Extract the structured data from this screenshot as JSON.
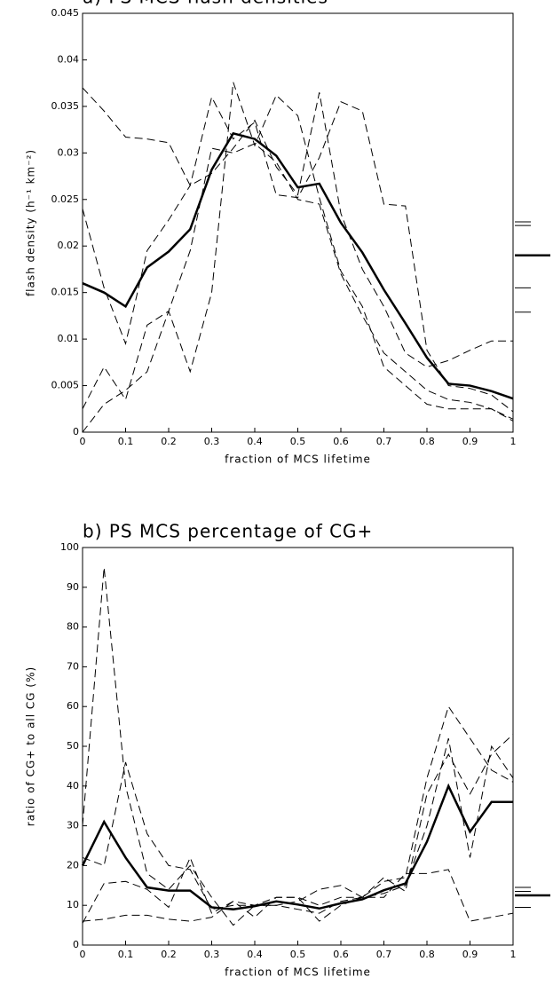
{
  "chart_data": [
    {
      "type": "line",
      "title": "a)  PS MCS flash densities",
      "x_label": "fraction of MCS lifetime",
      "y_label": "flash density (h⁻¹ km⁻²)",
      "x": [
        0,
        0.05,
        0.1,
        0.15,
        0.2,
        0.25,
        0.3,
        0.35,
        0.4,
        0.45,
        0.5,
        0.55,
        0.6,
        0.65,
        0.7,
        0.75,
        0.8,
        0.85,
        0.9,
        0.95,
        1
      ],
      "xlim": [
        0,
        1
      ],
      "xticks": [
        0,
        0.1,
        0.2,
        0.3,
        0.4,
        0.5,
        0.6,
        0.7,
        0.8,
        0.9,
        1
      ],
      "ylim": [
        0,
        0.045
      ],
      "yticks": [
        0,
        0.005,
        0.01,
        0.015,
        0.02,
        0.025,
        0.03,
        0.035,
        0.04,
        0.045
      ],
      "series": [
        {
          "color": "#000",
          "style": "solid",
          "values": [
            0.016,
            0.015,
            0.0135,
            0.0177,
            0.0194,
            0.0218,
            0.0282,
            0.0321,
            0.0315,
            0.0297,
            0.0263,
            0.0267,
            0.0225,
            0.0193,
            0.0153,
            0.0117,
            0.008,
            0.0052,
            0.005,
            0.0044,
            0.0036
          ]
        },
        {
          "color": "#000",
          "style": "dashed",
          "values": [
            0.037,
            0.0345,
            0.0317,
            0.0315,
            0.0311,
            0.0265,
            0.0278,
            0.0305,
            0.0335,
            0.0285,
            0.0255,
            0.0365,
            0.0235,
            0.0175,
            0.0135,
            0.0085,
            0.007,
            0.0077,
            0.0088,
            0.0098,
            0.0098
          ]
        },
        {
          "color": "#000",
          "style": "dashed",
          "values": [
            0.024,
            0.0155,
            0.0095,
            0.0195,
            0.0228,
            0.0265,
            0.036,
            0.0315,
            0.0333,
            0.0255,
            0.0252,
            0.0295,
            0.0355,
            0.0345,
            0.0245,
            0.0243,
            0.0088,
            0.005,
            0.0047,
            0.004,
            0.0022
          ]
        },
        {
          "color": "#000",
          "style": "dashed",
          "values": [
            0.0025,
            0.007,
            0.0035,
            0.0115,
            0.013,
            0.0065,
            0.015,
            0.0376,
            0.0308,
            0.0362,
            0.034,
            0.0252,
            0.0173,
            0.0135,
            0.007,
            0.005,
            0.003,
            0.0025,
            0.0025,
            0.0025,
            0.0014
          ]
        },
        {
          "color": "#000",
          "style": "dashed",
          "values": [
            0,
            0.003,
            0.0045,
            0.0065,
            0.013,
            0.0195,
            0.0305,
            0.03,
            0.031,
            0.029,
            0.025,
            0.0245,
            0.017,
            0.0125,
            0.0085,
            0.0065,
            0.0045,
            0.0035,
            0.0032,
            0.0025,
            0.0012
          ]
        }
      ],
      "margin_markers": [
        {
          "value": 0.0226,
          "bold": false
        },
        {
          "value": 0.0222,
          "bold": false
        },
        {
          "value": 0.019,
          "bold": true
        },
        {
          "value": 0.0155,
          "bold": false
        },
        {
          "value": 0.0129,
          "bold": false
        }
      ]
    },
    {
      "type": "line",
      "title": "b)  PS MCS percentage of CG+",
      "x_label": "fraction of MCS lifetime",
      "y_label": "ratio of CG+ to all CG (%)",
      "x": [
        0,
        0.05,
        0.1,
        0.15,
        0.2,
        0.25,
        0.3,
        0.35,
        0.4,
        0.45,
        0.5,
        0.55,
        0.6,
        0.65,
        0.7,
        0.75,
        0.8,
        0.85,
        0.9,
        0.95,
        1
      ],
      "xlim": [
        0,
        1
      ],
      "xticks": [
        0,
        0.1,
        0.2,
        0.3,
        0.4,
        0.5,
        0.6,
        0.7,
        0.8,
        0.9,
        1
      ],
      "ylim": [
        0,
        100
      ],
      "yticks": [
        0,
        10,
        20,
        30,
        40,
        50,
        60,
        70,
        80,
        90,
        100
      ],
      "series": [
        {
          "color": "#000",
          "style": "solid",
          "values": [
            20,
            31,
            22,
            14.5,
            13.7,
            13.7,
            9.5,
            9,
            9.8,
            11,
            10.2,
            9.2,
            10.5,
            11.5,
            13.8,
            15.5,
            26,
            40,
            28.5,
            36,
            36
          ]
        },
        {
          "color": "#000",
          "style": "dashed",
          "values": [
            30,
            95,
            40,
            18,
            14,
            20,
            12,
            5,
            10,
            10,
            9,
            8,
            11,
            12,
            16,
            17,
            42,
            60,
            52,
            44,
            41
          ]
        },
        {
          "color": "#000",
          "style": "dashed",
          "values": [
            22,
            20,
            46,
            28,
            20,
            19,
            9,
            10,
            10,
            12,
            12,
            6,
            10,
            12,
            13,
            15,
            30,
            52,
            22,
            50,
            42
          ]
        },
        {
          "color": "#000",
          "style": "dashed",
          "values": [
            5.5,
            15.5,
            16,
            14,
            9.5,
            22,
            8,
            11,
            10,
            10,
            11,
            14,
            15,
            12,
            12,
            18,
            18,
            19,
            6,
            7,
            8
          ]
        },
        {
          "color": "#000",
          "style": "dashed",
          "values": [
            6,
            6.5,
            7.5,
            7.5,
            6.5,
            6,
            7,
            11,
            7,
            12,
            12,
            10,
            12,
            12,
            17,
            13.5,
            38,
            48,
            38,
            48,
            53
          ]
        }
      ],
      "margin_markers": [
        {
          "value": 14.5,
          "bold": false
        },
        {
          "value": 13.5,
          "bold": false
        },
        {
          "value": 12.5,
          "bold": true
        },
        {
          "value": 9.5,
          "bold": false
        }
      ]
    }
  ]
}
